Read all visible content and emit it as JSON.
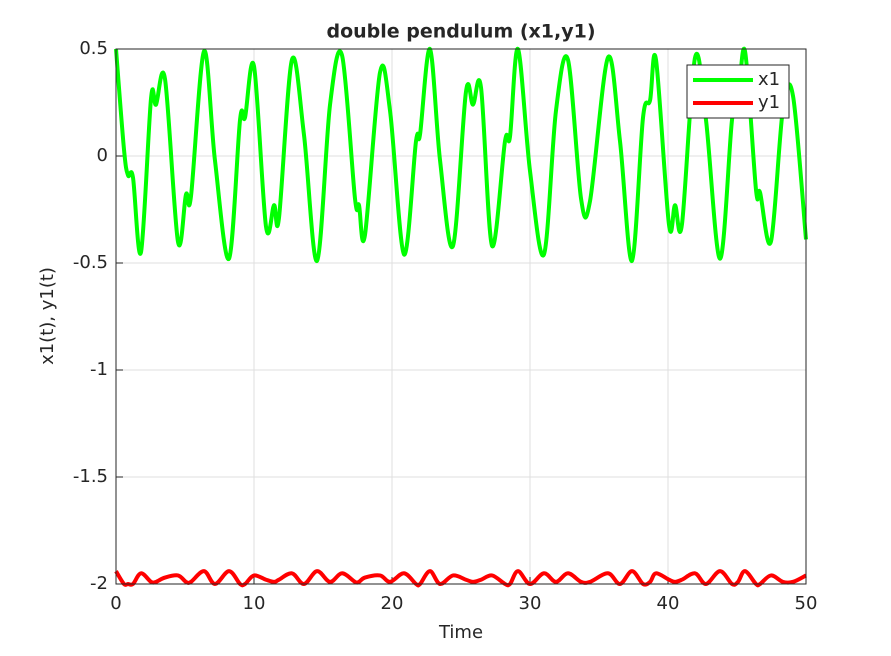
{
  "chart_data": {
    "type": "line",
    "title": "double pendulum (x1,y1)",
    "xlabel": "Time",
    "ylabel": "x1(t), y1(t)",
    "x": [
      0,
      0.58,
      0.87,
      1.23,
      1.81,
      2.54,
      2.9,
      3.55,
      4.49,
      5.07,
      5.43,
      6.38,
      7.17,
      8.19,
      8.99,
      9.35,
      10.0,
      10.87,
      11.45,
      11.81,
      12.75,
      13.62,
      14.57,
      15.51,
      16.38,
      17.32,
      17.61,
      18.04,
      19.13,
      19.86,
      20.87,
      21.74,
      22.03,
      22.75,
      23.48,
      24.42,
      25.36,
      25.87,
      26.45,
      27.25,
      28.19,
      28.55,
      29.13,
      30.0,
      31.01,
      31.88,
      32.75,
      33.7,
      34.35,
      35.65,
      36.52,
      37.39,
      38.19,
      38.7,
      39.13,
      40.07,
      40.51,
      41.01,
      41.96,
      42.75,
      43.77,
      44.64,
      45.07,
      45.58,
      46.38,
      46.67,
      47.46,
      48.33,
      49.06,
      50
    ],
    "series": [
      {
        "name": "x1",
        "color": "#00ff00",
        "values": [
          0.5,
          0.03,
          -0.09,
          -0.1,
          -0.45,
          0.27,
          0.24,
          0.36,
          -0.4,
          -0.18,
          -0.19,
          0.49,
          -0.02,
          -0.48,
          0.17,
          0.18,
          0.42,
          -0.33,
          -0.23,
          -0.29,
          0.45,
          0.1,
          -0.49,
          0.24,
          0.47,
          -0.2,
          -0.23,
          -0.37,
          0.39,
          0.21,
          -0.46,
          0.07,
          0.1,
          0.5,
          -0.02,
          -0.42,
          0.3,
          0.24,
          0.32,
          -0.42,
          0.07,
          0.09,
          0.5,
          -0.07,
          -0.46,
          0.21,
          0.45,
          -0.2,
          -0.21,
          0.46,
          0.07,
          -0.49,
          0.18,
          0.26,
          0.45,
          -0.32,
          -0.23,
          -0.32,
          0.46,
          0.17,
          -0.48,
          0.17,
          0.25,
          0.49,
          -0.16,
          -0.17,
          -0.4,
          0.22,
          0.28,
          -0.39
        ]
      },
      {
        "name": "y1",
        "color": "#ff0000",
        "values": [
          -1.94,
          -2.0,
          -2.0,
          -2.0,
          -1.95,
          -1.99,
          -1.99,
          -1.97,
          -1.96,
          -1.99,
          -1.99,
          -1.94,
          -2.0,
          -1.94,
          -2.0,
          -2.0,
          -1.96,
          -1.98,
          -1.99,
          -1.98,
          -1.95,
          -2.0,
          -1.94,
          -1.99,
          -1.95,
          -1.99,
          -1.99,
          -1.97,
          -1.96,
          -1.99,
          -1.95,
          -2.0,
          -2.0,
          -1.94,
          -2.0,
          -1.96,
          -1.98,
          -1.99,
          -1.98,
          -1.96,
          -2.0,
          -2.0,
          -1.94,
          -2.0,
          -1.95,
          -1.99,
          -1.95,
          -1.99,
          -1.99,
          -1.95,
          -2.0,
          -1.94,
          -2.0,
          -1.99,
          -1.95,
          -1.98,
          -1.99,
          -1.98,
          -1.95,
          -2.0,
          -1.94,
          -2.0,
          -1.99,
          -1.94,
          -2.0,
          -2.0,
          -1.96,
          -1.99,
          -1.99,
          -1.96
        ]
      }
    ],
    "xlim": [
      0,
      50
    ],
    "xticks": [
      0,
      10,
      20,
      30,
      40,
      50
    ],
    "ylim": [
      -2,
      0.5
    ],
    "yticks": [
      -2,
      -1.5,
      -1,
      -0.5,
      0,
      0.5
    ],
    "grid": true,
    "legend": "northeast"
  }
}
